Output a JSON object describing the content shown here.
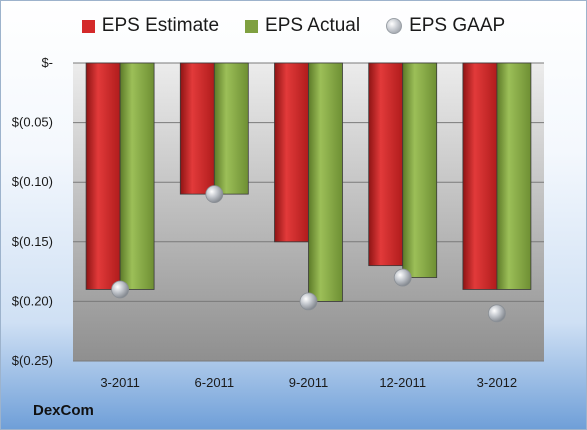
{
  "company": "DexCom",
  "chart_data": {
    "type": "bar",
    "categories": [
      "3-2011",
      "6-2011",
      "9-2011",
      "12-2011",
      "3-2012"
    ],
    "series": [
      {
        "name": "EPS Estimate",
        "values": [
          -0.19,
          -0.11,
          -0.15,
          -0.17,
          -0.19
        ],
        "color": "#d42a2a"
      },
      {
        "name": "EPS Actual",
        "values": [
          -0.19,
          -0.11,
          -0.2,
          -0.18,
          -0.19
        ],
        "color": "#7fa040"
      }
    ],
    "scatter_series": {
      "name": "EPS GAAP",
      "values": [
        -0.19,
        -0.11,
        -0.2,
        -0.18,
        -0.21
      ],
      "color": "#a8adb3"
    },
    "yticks": [
      {
        "value": 0,
        "label": "$-"
      },
      {
        "value": -0.05,
        "label": "$(0.05)"
      },
      {
        "value": -0.1,
        "label": "$(0.10)"
      },
      {
        "value": -0.15,
        "label": "$(0.15)"
      },
      {
        "value": -0.2,
        "label": "$(0.20)"
      },
      {
        "value": -0.25,
        "label": "$(0.25)"
      }
    ],
    "ylim": [
      -0.25,
      0
    ],
    "title": "",
    "xlabel": "",
    "ylabel": "",
    "grid": true,
    "legend": "top"
  }
}
